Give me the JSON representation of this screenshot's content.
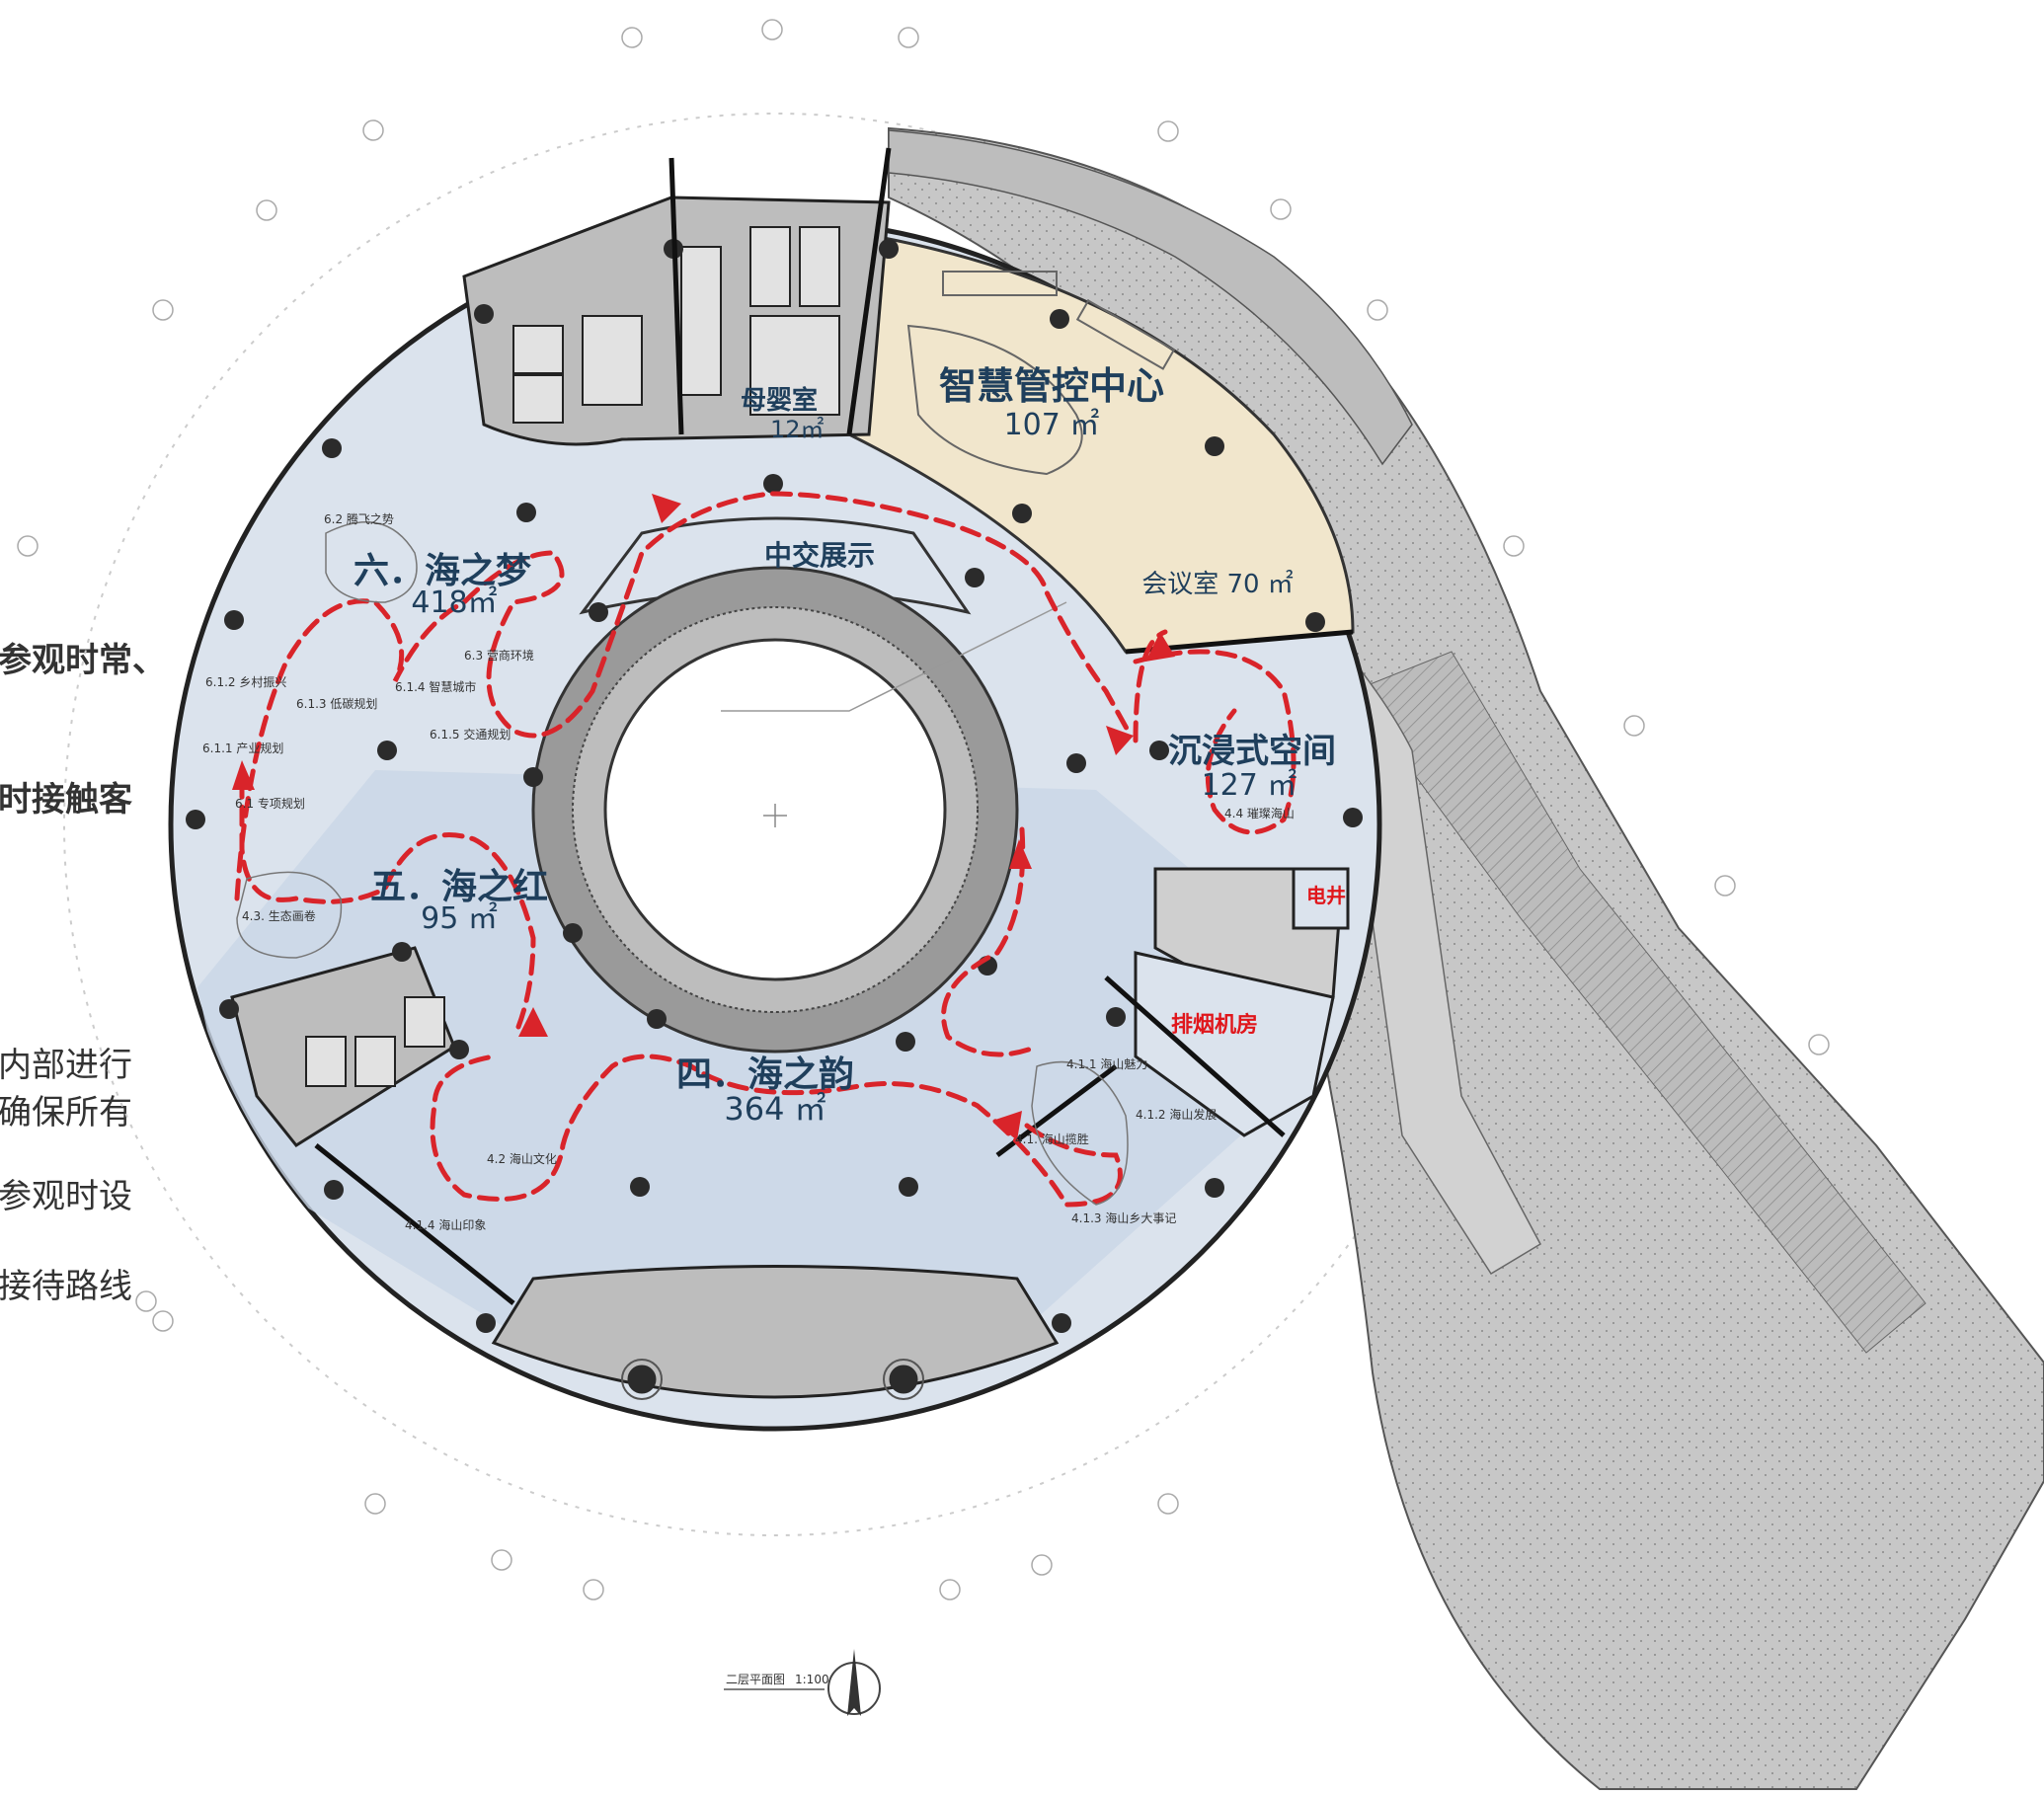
{
  "side_text": [
    "参观时常、",
    "时接触客",
    "内部进行",
    "确保所有",
    "参观时设",
    "接待路线"
  ],
  "rooms": {
    "mother_room": {
      "name": "母婴室",
      "area": "12㎡"
    },
    "control_center": {
      "name": "智慧管控中心",
      "area": "107 ㎡"
    },
    "meeting_room": {
      "label": "会议室 70 ㎡"
    },
    "central_exhibit": {
      "name": "中交展示"
    },
    "immersive": {
      "name": "沉浸式空间",
      "area": "127 ㎡"
    },
    "sea_dream": {
      "name": "六．海之梦",
      "area": "418㎡"
    },
    "sea_red": {
      "name": "五．海之红",
      "area": "95 ㎡"
    },
    "sea_rhyme": {
      "name": "四．海之韵",
      "area": "364 ㎡"
    },
    "electric_shaft": {
      "name": "电井"
    },
    "smoke_room": {
      "name": "排烟机房"
    }
  },
  "small_labels": {
    "l62": "6.2 腾飞之势",
    "l63": "6.3 营商环境",
    "l612": "6.1.2 乡村振兴",
    "l613": "6.1.3 低碳规划",
    "l614": "6.1.4 智慧城市",
    "l615": "6.1.5 交通规划",
    "l611": "6.1.1 产业规划",
    "l61": "6.1 专项规划",
    "l43": "4.3. 生态画卷",
    "l44": "4.4 璀璨海山",
    "l411": "4.1.1 海山魅力",
    "l412": "4.1.2 海山发展",
    "l41": "4.1. 海山揽胜",
    "l413": "4.1.3 海山乡大事记",
    "l42": "4.2 海山文化",
    "l414": "4.1.4 海山印象"
  },
  "caption": {
    "title": "二层平面图",
    "scale": "1:100"
  },
  "colors": {
    "exhibit_fill": "#dbe3ed",
    "gallery_fill": "#c9d6e6",
    "control_fill": "#f1e6cc",
    "service_fill": "#b5b5b5",
    "site_fill": "#c6c6c6",
    "route_red": "#d9242a",
    "text_navy": "#1f3f5c"
  }
}
